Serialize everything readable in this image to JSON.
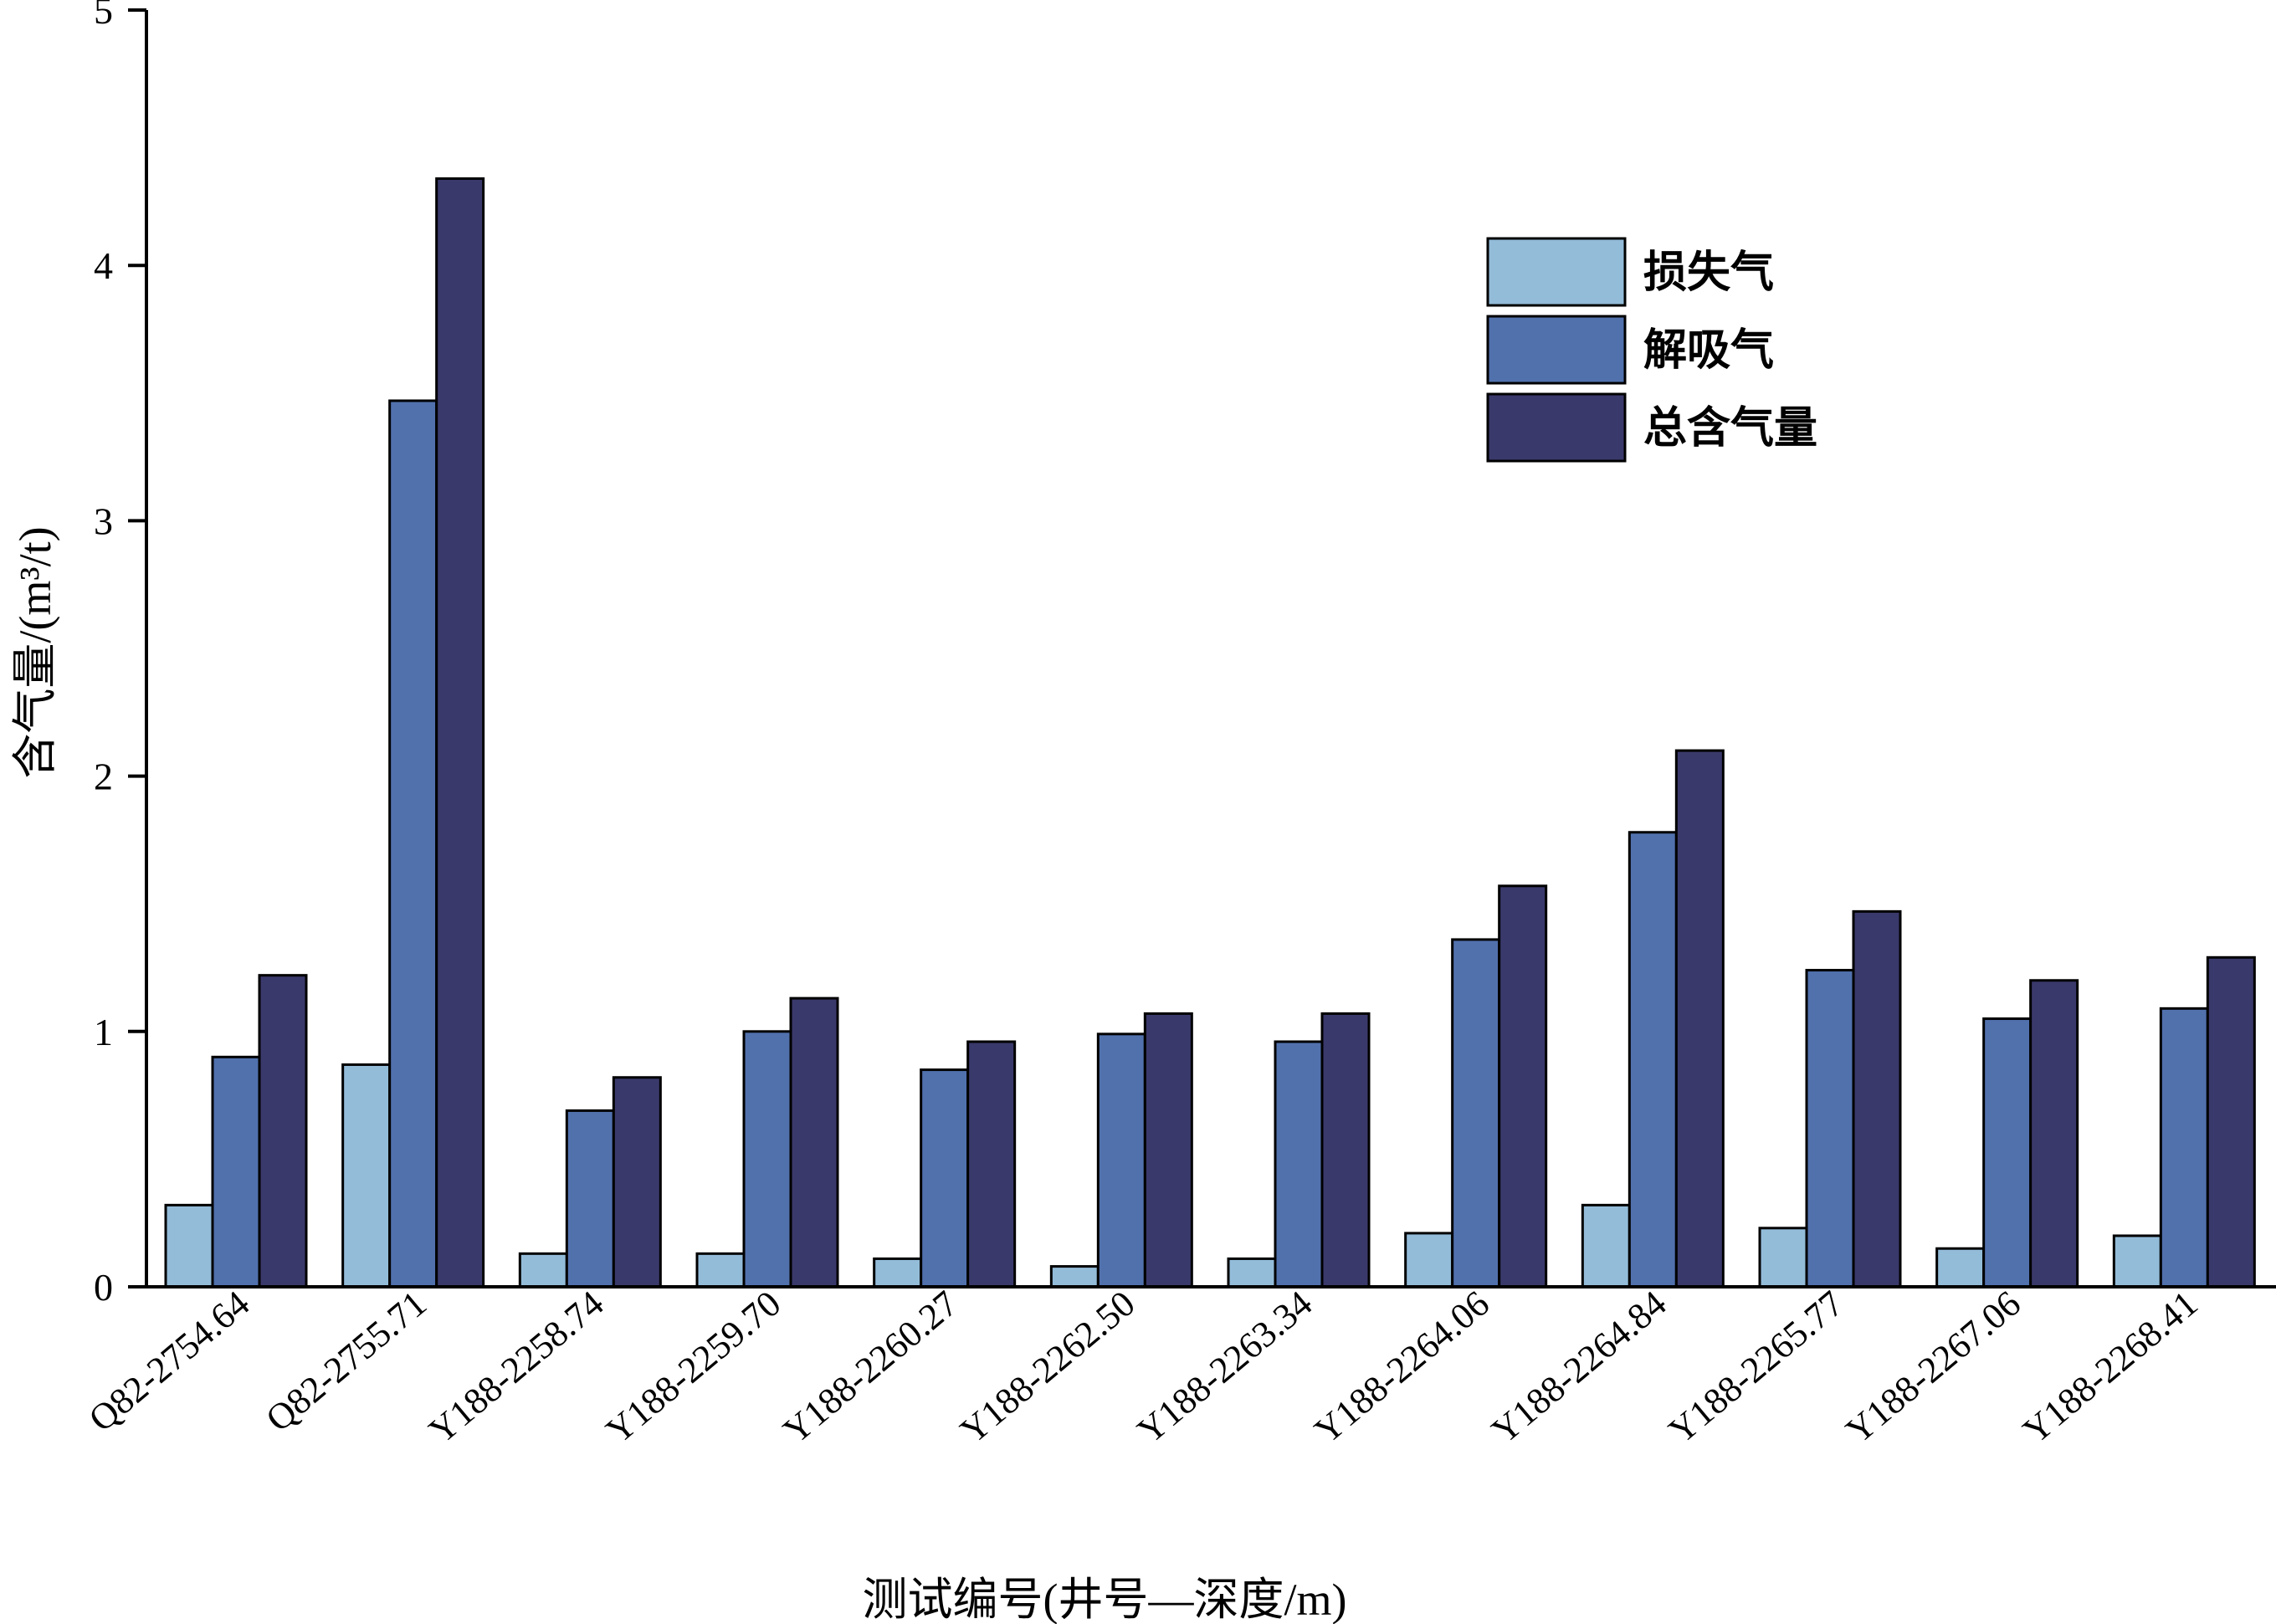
{
  "chart_data": {
    "type": "bar",
    "categories": [
      "Q82-2754.64",
      "Q82-2755.71",
      "Y188-2258.74",
      "Y188-2259.70",
      "Y188-2260.27",
      "Y188-2262.50",
      "Y188-2263.34",
      "Y188-2264.06",
      "Y188-2264.84",
      "Y188-2265.77",
      "Y188-2267.06",
      "Y188-2268.41"
    ],
    "series": [
      {
        "name": "损失气",
        "color": "#93bcd9",
        "values": [
          0.32,
          0.87,
          0.13,
          0.13,
          0.11,
          0.08,
          0.11,
          0.21,
          0.32,
          0.23,
          0.15,
          0.2
        ]
      },
      {
        "name": "解吸气",
        "color": "#5171ad",
        "values": [
          0.9,
          3.47,
          0.69,
          1.0,
          0.85,
          0.99,
          0.96,
          1.36,
          1.78,
          1.24,
          1.05,
          1.09
        ]
      },
      {
        "name": "总含气量",
        "color": "#3a396b",
        "values": [
          1.22,
          4.34,
          0.82,
          1.13,
          0.96,
          1.07,
          1.07,
          1.57,
          2.1,
          1.47,
          1.2,
          1.29
        ]
      }
    ],
    "xlabel": "测试编号(井号—深度/m)",
    "ylabel": "含气量/(m³/t)",
    "ylim": [
      0,
      5
    ],
    "yticks": [
      0,
      1,
      2,
      3,
      4,
      5
    ],
    "grid": false,
    "legend_position": "top-right"
  }
}
